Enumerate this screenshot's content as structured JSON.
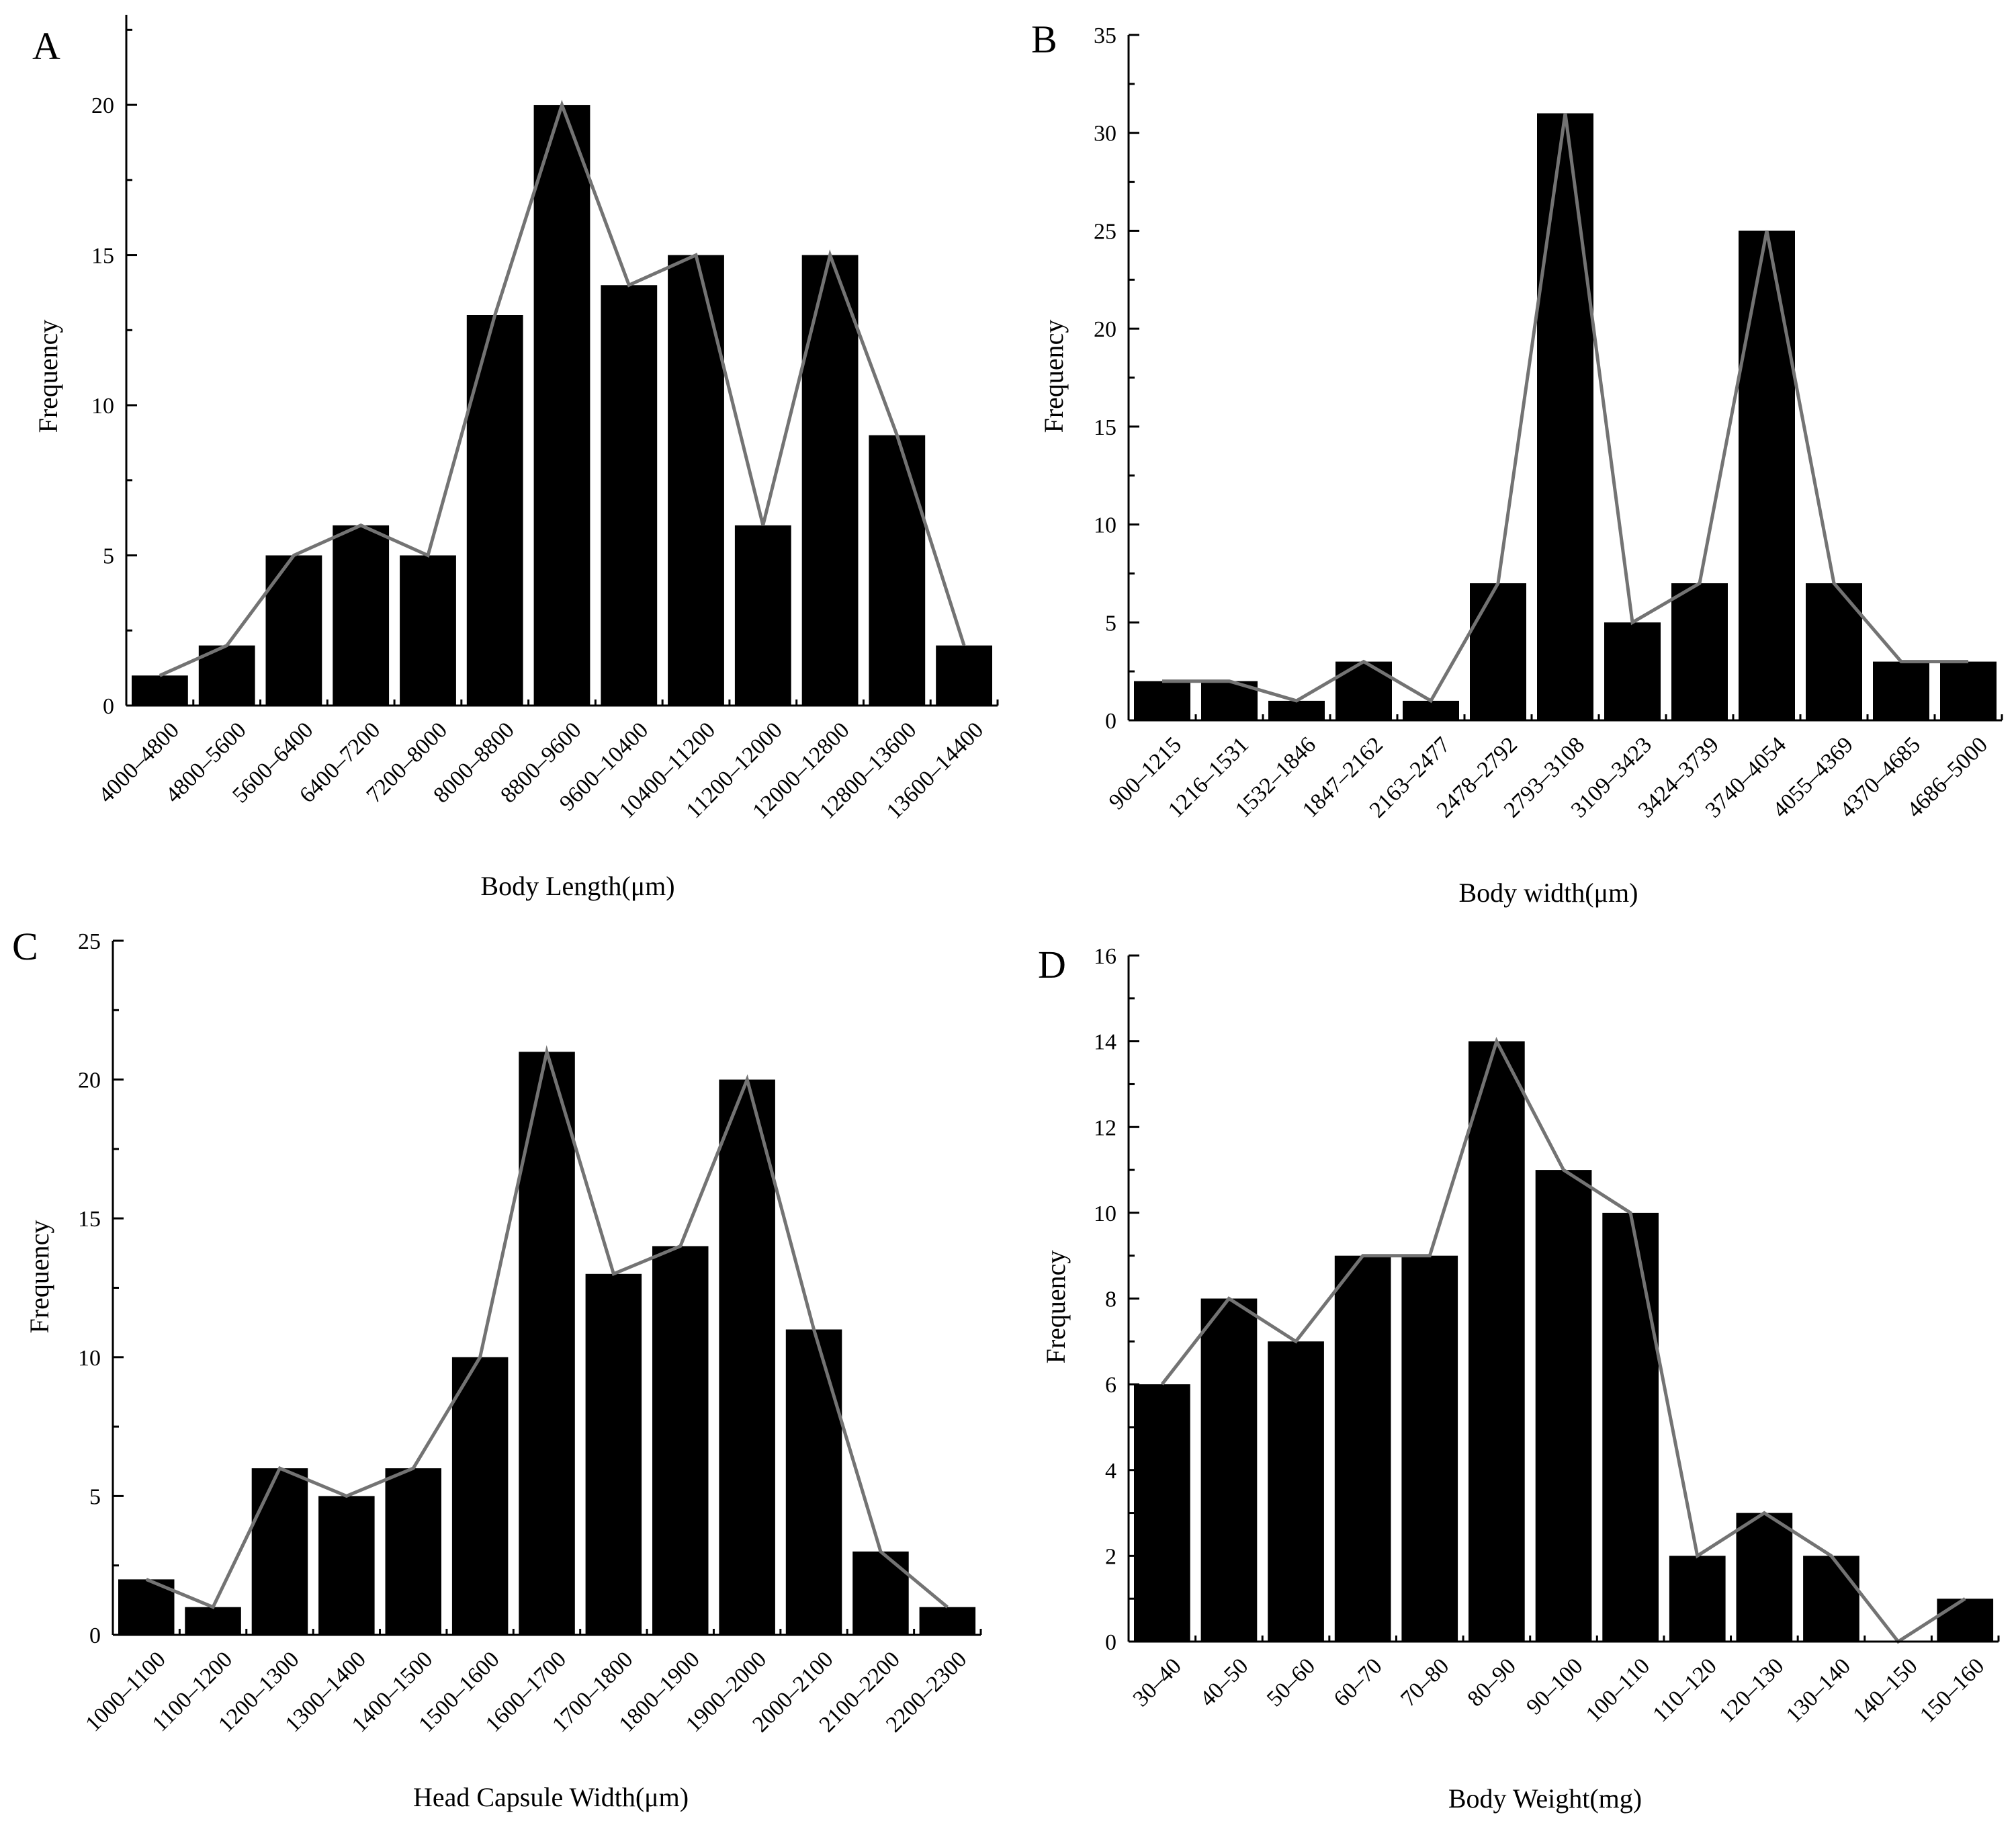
{
  "colors": {
    "bar": "#000000",
    "line": "#737373",
    "axis": "#000000"
  },
  "chart_data": [
    {
      "panel": "A",
      "type": "bar",
      "overlay": "line",
      "xlabel": "Body Length(μm)",
      "ylabel": "Frequency",
      "ylim": [
        0,
        23
      ],
      "yticks": [
        0,
        5,
        10,
        15,
        20
      ],
      "categories": [
        "4000–4800",
        "4800–5600",
        "5600–6400",
        "6400–7200",
        "7200–8000",
        "8000–8800",
        "8800–9600",
        "9600–10400",
        "10400–11200",
        "11200–12000",
        "12000–12800",
        "12800–13600",
        "13600–14400"
      ],
      "values": [
        1,
        2,
        5,
        6,
        5,
        13,
        20,
        14,
        15,
        6,
        15,
        9,
        2
      ]
    },
    {
      "panel": "B",
      "type": "bar",
      "overlay": "line",
      "xlabel": "Body width(μm)",
      "ylabel": "Frequency",
      "ylim": [
        0,
        35
      ],
      "yticks": [
        0,
        5,
        10,
        15,
        20,
        25,
        30,
        35
      ],
      "categories": [
        "900–1215",
        "1216–1531",
        "1532–1846",
        "1847–2162",
        "2163–2477",
        "2478–2792",
        "2793–3108",
        "3109–3423",
        "3424–3739",
        "3740–4054",
        "4055–4369",
        "4370–4685",
        "4686–5000"
      ],
      "values": [
        2,
        2,
        1,
        3,
        1,
        7,
        31,
        5,
        7,
        25,
        7,
        3,
        3
      ]
    },
    {
      "panel": "C",
      "type": "bar",
      "overlay": "line",
      "xlabel": "Head Capsule Width(μm)",
      "ylabel": "Frequency",
      "ylim": [
        0,
        25
      ],
      "yticks": [
        0,
        5,
        10,
        15,
        20,
        25
      ],
      "categories": [
        "1000–1100",
        "1100–1200",
        "1200–1300",
        "1300–1400",
        "1400–1500",
        "1500–1600",
        "1600–1700",
        "1700–1800",
        "1800–1900",
        "1900–2000",
        "2000–2100",
        "2100–2200",
        "2200–2300"
      ],
      "values": [
        2,
        1,
        6,
        5,
        6,
        10,
        21,
        13,
        14,
        20,
        11,
        3,
        1
      ]
    },
    {
      "panel": "D",
      "type": "bar",
      "overlay": "line",
      "xlabel": "Body Weight(mg)",
      "ylabel": "Frequency",
      "ylim": [
        0,
        16
      ],
      "yticks": [
        0,
        2,
        4,
        6,
        8,
        10,
        12,
        14,
        16
      ],
      "categories": [
        "30–40",
        "40–50",
        "50–60",
        "60–70",
        "70–80",
        "80–90",
        "90–100",
        "100–110",
        "110–120",
        "120–130",
        "130–140",
        "140–150",
        "150–160"
      ],
      "values": [
        6,
        8,
        7,
        9,
        9,
        14,
        11,
        10,
        2,
        3,
        2,
        0,
        1
      ]
    }
  ]
}
